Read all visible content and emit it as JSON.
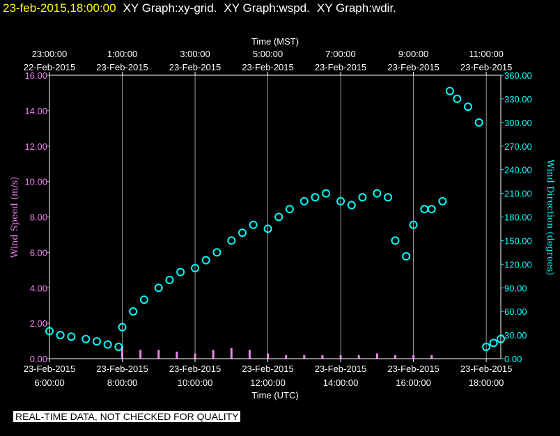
{
  "header": {
    "timestamp": "23-feb-2015,18:00:00",
    "graphs": [
      "XY Graph:xy-grid.",
      "XY Graph:wspd.",
      "XY Graph:wdir."
    ]
  },
  "disclaimer": "REAL-TIME DATA, NOT CHECKED FOR QUALITY",
  "colors": {
    "wspd": "#ee82ee",
    "wdir": "#00ffff",
    "grid": "#ffffff",
    "background": "#000000",
    "title_timestamp": "#ffff00"
  },
  "chart_data": {
    "type": "scatter",
    "x_unit": "hours UTC",
    "xlim": [
      6,
      18.4
    ],
    "top_axis": {
      "label": "Time (MST)",
      "ticks": [
        {
          "x": 6,
          "time": "23:00:00",
          "date": "22-Feb-2015"
        },
        {
          "x": 8,
          "time": "1:00:00",
          "date": "23-Feb-2015"
        },
        {
          "x": 10,
          "time": "3:00:00",
          "date": "23-Feb-2015"
        },
        {
          "x": 12,
          "time": "5:00:00",
          "date": "23-Feb-2015"
        },
        {
          "x": 14,
          "time": "7:00:00",
          "date": "23-Feb-2015"
        },
        {
          "x": 16,
          "time": "9:00:00",
          "date": "23-Feb-2015"
        },
        {
          "x": 18,
          "time": "11:00:00",
          "date": "23-Feb-2015"
        }
      ]
    },
    "bottom_axis": {
      "label": "Time (UTC)",
      "ticks": [
        {
          "x": 6,
          "date": "23-Feb-2015",
          "time": "6:00:00"
        },
        {
          "x": 8,
          "date": "23-Feb-2015",
          "time": "8:00:00"
        },
        {
          "x": 10,
          "date": "23-Feb-2015",
          "time": "10:00:00"
        },
        {
          "x": 12,
          "date": "23-Feb-2015",
          "time": "12:00:00"
        },
        {
          "x": 14,
          "date": "23-Feb-2015",
          "time": "14:00:00"
        },
        {
          "x": 16,
          "date": "23-Feb-2015",
          "time": "16:00:00"
        },
        {
          "x": 18,
          "date": "23-Feb-2015",
          "time": "18:00:00"
        }
      ]
    },
    "left_axis": {
      "label": "Wind Speed (m/s)",
      "ylim": [
        0,
        16
      ],
      "ticks": [
        "0.00",
        "2.00",
        "4.00",
        "6.00",
        "8.00",
        "10.00",
        "12.00",
        "14.00",
        "16.00"
      ]
    },
    "right_axis": {
      "label": "Wind Direction (degrees)",
      "ylim": [
        0,
        360
      ],
      "ticks": [
        "0.00",
        "30.00",
        "60.00",
        "90.00",
        "120.00",
        "150.00",
        "180.00",
        "210.00",
        "240.00",
        "270.00",
        "300.00",
        "330.00",
        "360.00"
      ]
    },
    "grid": true,
    "series": [
      {
        "name": "wspd",
        "axis": "left",
        "x": [
          6.0,
          7.0,
          7.9,
          8.0,
          8.5,
          9.0,
          9.5,
          10.0,
          10.5,
          11.0,
          11.5,
          12.0,
          12.5,
          13.0,
          13.5,
          14.0,
          14.5,
          15.0,
          15.5,
          16.0,
          16.5,
          17.0,
          17.5,
          18.0,
          18.4
        ],
        "y": [
          0.0,
          0.0,
          0.0,
          0.7,
          0.5,
          0.5,
          0.4,
          0.3,
          0.5,
          0.6,
          0.5,
          0.3,
          0.2,
          0.2,
          0.2,
          0.2,
          0.2,
          0.3,
          0.2,
          0.2,
          0.2,
          0.0,
          0.0,
          0.0,
          0.0
        ]
      },
      {
        "name": "wdir",
        "axis": "right",
        "x": [
          6.0,
          6.3,
          6.6,
          7.0,
          7.3,
          7.6,
          7.9,
          8.0,
          8.3,
          8.6,
          9.0,
          9.3,
          9.6,
          10.0,
          10.3,
          10.6,
          11.0,
          11.3,
          11.6,
          12.0,
          12.3,
          12.6,
          13.0,
          13.3,
          13.6,
          14.0,
          14.3,
          14.6,
          15.0,
          15.3,
          15.5,
          15.8,
          16.0,
          16.3,
          16.5,
          16.8,
          17.0,
          17.2,
          17.5,
          17.8,
          18.0,
          18.2,
          18.4
        ],
        "y": [
          35,
          30,
          28,
          25,
          22,
          18,
          15,
          40,
          60,
          75,
          90,
          100,
          110,
          115,
          125,
          135,
          150,
          160,
          170,
          165,
          180,
          190,
          200,
          205,
          210,
          200,
          195,
          205,
          210,
          205,
          150,
          130,
          170,
          190,
          190,
          200,
          340,
          330,
          320,
          300,
          15,
          20,
          25
        ]
      }
    ]
  }
}
